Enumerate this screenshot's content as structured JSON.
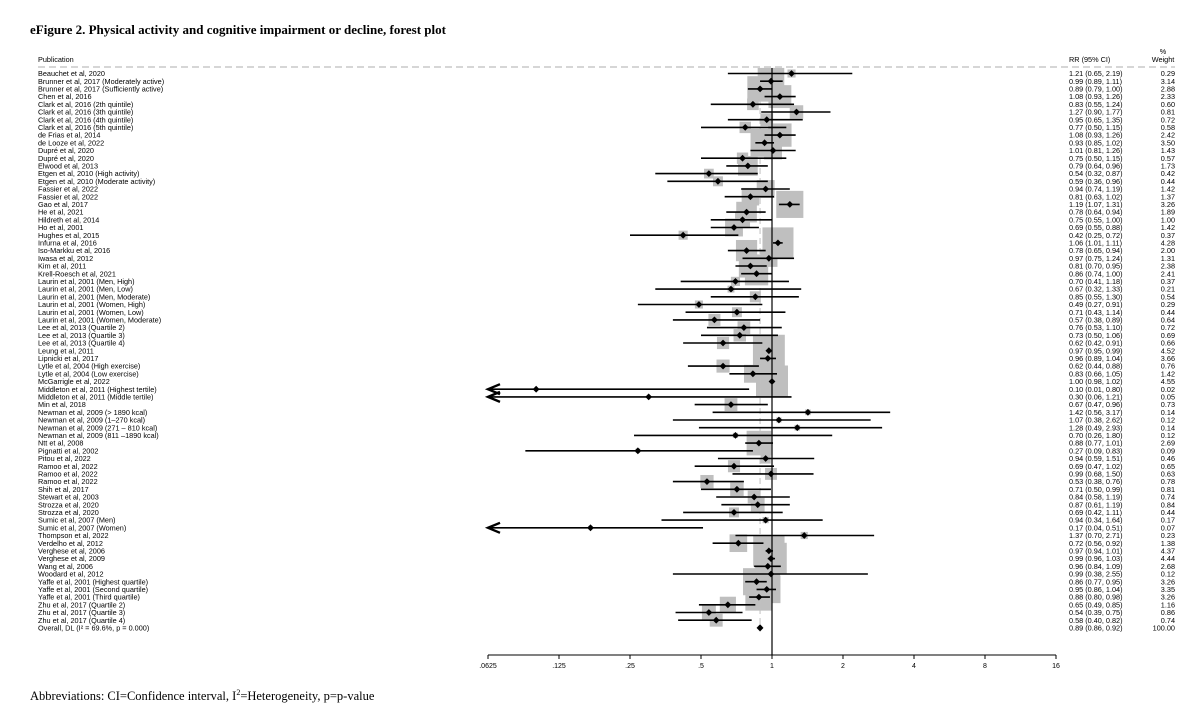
{
  "figure": {
    "title": "eFigure 2. Physical activity and cognitive impairment or decline, forest plot",
    "footnote_pre": "Abbreviations: CI=Confidence interval, I",
    "footnote_sup": "2",
    "footnote_post": "=Heterogeneity, p=p-value"
  },
  "chart_data": {
    "type": "forest",
    "xscale": "log2",
    "xlim": [
      0.0625,
      16
    ],
    "x_ticks": [
      {
        "v": 0.0625,
        "label": ".0625"
      },
      {
        "v": 0.125,
        "label": ".125"
      },
      {
        "v": 0.25,
        "label": ".25"
      },
      {
        "v": 0.5,
        "label": ".5"
      },
      {
        "v": 1,
        "label": "1"
      },
      {
        "v": 2,
        "label": "2"
      },
      {
        "v": 4,
        "label": "4"
      },
      {
        "v": 8,
        "label": "8"
      },
      {
        "v": 16,
        "label": "16"
      }
    ],
    "column_headers": {
      "study": "Publication",
      "effect": "RR (95% CI)",
      "weight_top": "%",
      "weight_bottom": "Weight"
    },
    "reference_line": 1,
    "overall_line": 0.89,
    "studies": [
      {
        "label": "Beauchet et al, 2020",
        "rr": 1.21,
        "lo": 0.65,
        "hi": 2.19,
        "ci": "1.21 (0.65, 2.19)",
        "weight": "0.29"
      },
      {
        "label": "Brunner et al, 2017 (Moderately active)",
        "rr": 0.99,
        "lo": 0.89,
        "hi": 1.11,
        "ci": "0.99 (0.89, 1.11)",
        "weight": "3.14"
      },
      {
        "label": "Brunner et al, 2017 (Sufficiently active)",
        "rr": 0.89,
        "lo": 0.79,
        "hi": 1.0,
        "ci": "0.89 (0.79, 1.00)",
        "weight": "2.88"
      },
      {
        "label": "Chen et al, 2016",
        "rr": 1.08,
        "lo": 0.93,
        "hi": 1.26,
        "ci": "1.08 (0.93, 1.26)",
        "weight": "2.33"
      },
      {
        "label": "Clark et al, 2016 (2th quintile)",
        "rr": 0.83,
        "lo": 0.55,
        "hi": 1.24,
        "ci": "0.83 (0.55, 1.24)",
        "weight": "0.60"
      },
      {
        "label": "Clark et al, 2016 (3th quintile)",
        "rr": 1.27,
        "lo": 0.9,
        "hi": 1.77,
        "ci": "1.27 (0.90, 1.77)",
        "weight": "0.81"
      },
      {
        "label": "Clark et al, 2016 (4th quintile)",
        "rr": 0.95,
        "lo": 0.65,
        "hi": 1.35,
        "ci": "0.95 (0.65, 1.35)",
        "weight": "0.72"
      },
      {
        "label": "Clark et al, 2016 (5th quintile)",
        "rr": 0.77,
        "lo": 0.5,
        "hi": 1.15,
        "ci": "0.77 (0.50, 1.15)",
        "weight": "0.58"
      },
      {
        "label": "de Frias et al, 2014",
        "rr": 1.08,
        "lo": 0.93,
        "hi": 1.26,
        "ci": "1.08 (0.93, 1.26)",
        "weight": "2.42"
      },
      {
        "label": "de Looze et al, 2022",
        "rr": 0.93,
        "lo": 0.85,
        "hi": 1.02,
        "ci": "0.93 (0.85, 1.02)",
        "weight": "3.50"
      },
      {
        "label": "Dupré et al, 2020",
        "rr": 1.01,
        "lo": 0.81,
        "hi": 1.26,
        "ci": "1.01 (0.81, 1.26)",
        "weight": "1.43"
      },
      {
        "label": "Dupré et al, 2020",
        "rr": 0.75,
        "lo": 0.5,
        "hi": 1.15,
        "ci": "0.75 (0.50, 1.15)",
        "weight": "0.57"
      },
      {
        "label": "Elwood et al, 2013",
        "rr": 0.79,
        "lo": 0.64,
        "hi": 0.96,
        "ci": "0.79 (0.64, 0.96)",
        "weight": "1.73"
      },
      {
        "label": "Etgen et al, 2010 (High activity)",
        "rr": 0.54,
        "lo": 0.32,
        "hi": 0.87,
        "ci": "0.54 (0.32, 0.87)",
        "weight": "0.42"
      },
      {
        "label": "Etgen et al, 2010 (Moderate activity)",
        "rr": 0.59,
        "lo": 0.36,
        "hi": 0.96,
        "ci": "0.59 (0.36, 0.96)",
        "weight": "0.44"
      },
      {
        "label": "Fassier et al, 2022",
        "rr": 0.94,
        "lo": 0.74,
        "hi": 1.19,
        "ci": "0.94 (0.74, 1.19)",
        "weight": "1.42"
      },
      {
        "label": "Fassier et al, 2022",
        "rr": 0.81,
        "lo": 0.63,
        "hi": 1.02,
        "ci": "0.81 (0.63, 1.02)",
        "weight": "1.37"
      },
      {
        "label": "Gao et al, 2017",
        "rr": 1.19,
        "lo": 1.07,
        "hi": 1.31,
        "ci": "1.19 (1.07, 1.31)",
        "weight": "3.26"
      },
      {
        "label": "He et al, 2021",
        "rr": 0.78,
        "lo": 0.64,
        "hi": 0.94,
        "ci": "0.78 (0.64, 0.94)",
        "weight": "1.89"
      },
      {
        "label": "Hildreth et al, 2014",
        "rr": 0.75,
        "lo": 0.55,
        "hi": 1.0,
        "ci": "0.75 (0.55, 1.00)",
        "weight": "1.00"
      },
      {
        "label": "Ho et al, 2001",
        "rr": 0.69,
        "lo": 0.55,
        "hi": 0.88,
        "ci": "0.69 (0.55, 0.88)",
        "weight": "1.42"
      },
      {
        "label": "Hughes et al, 2015",
        "rr": 0.42,
        "lo": 0.25,
        "hi": 0.72,
        "ci": "0.42 (0.25, 0.72)",
        "weight": "0.37"
      },
      {
        "label": "Infurna et al, 2016",
        "rr": 1.06,
        "lo": 1.01,
        "hi": 1.11,
        "ci": "1.06 (1.01, 1.11)",
        "weight": "4.28"
      },
      {
        "label": "Iso-Markku et al, 2016",
        "rr": 0.78,
        "lo": 0.65,
        "hi": 0.94,
        "ci": "0.78 (0.65, 0.94)",
        "weight": "2.00"
      },
      {
        "label": "Iwasa et al, 2012",
        "rr": 0.97,
        "lo": 0.75,
        "hi": 1.24,
        "ci": "0.97 (0.75, 1.24)",
        "weight": "1.31"
      },
      {
        "label": "Kim et al, 2011",
        "rr": 0.81,
        "lo": 0.7,
        "hi": 0.95,
        "ci": "0.81 (0.70, 0.95)",
        "weight": "2.38"
      },
      {
        "label": "Krell-Roesch et al, 2021",
        "rr": 0.86,
        "lo": 0.74,
        "hi": 1.0,
        "ci": "0.86 (0.74, 1.00)",
        "weight": "2.41"
      },
      {
        "label": "Laurin et al, 2001 (Men, High)",
        "rr": 0.7,
        "lo": 0.41,
        "hi": 1.18,
        "ci": "0.70 (0.41, 1.18)",
        "weight": "0.37"
      },
      {
        "label": "Laurin et al, 2001 (Men, Low)",
        "rr": 0.67,
        "lo": 0.32,
        "hi": 1.33,
        "ci": "0.67 (0.32, 1.33)",
        "weight": "0.21"
      },
      {
        "label": "Laurin et al, 2001 (Men, Moderate)",
        "rr": 0.85,
        "lo": 0.55,
        "hi": 1.3,
        "ci": "0.85 (0.55, 1.30)",
        "weight": "0.54"
      },
      {
        "label": "Laurin et al, 2001 (Women, High)",
        "rr": 0.49,
        "lo": 0.27,
        "hi": 0.91,
        "ci": "0.49 (0.27, 0.91)",
        "weight": "0.29"
      },
      {
        "label": "Laurin et al, 2001 (Women, Low)",
        "rr": 0.71,
        "lo": 0.43,
        "hi": 1.14,
        "ci": "0.71 (0.43, 1.14)",
        "weight": "0.44"
      },
      {
        "label": "Laurin et al, 2001 (Women, Moderate)",
        "rr": 0.57,
        "lo": 0.38,
        "hi": 0.89,
        "ci": "0.57 (0.38, 0.89)",
        "weight": "0.64"
      },
      {
        "label": "Lee et al, 2013 (Quartile 2)",
        "rr": 0.76,
        "lo": 0.53,
        "hi": 1.1,
        "ci": "0.76 (0.53, 1.10)",
        "weight": "0.72"
      },
      {
        "label": "Lee et al, 2013 (Quartile 3)",
        "rr": 0.73,
        "lo": 0.5,
        "hi": 1.06,
        "ci": "0.73 (0.50, 1.06)",
        "weight": "0.69"
      },
      {
        "label": "Lee et al, 2013 (Quartile 4)",
        "rr": 0.62,
        "lo": 0.42,
        "hi": 0.91,
        "ci": "0.62 (0.42, 0.91)",
        "weight": "0.66"
      },
      {
        "label": "Leung et al, 2011",
        "rr": 0.97,
        "lo": 0.95,
        "hi": 0.99,
        "ci": "0.97 (0.95, 0.99)",
        "weight": "4.52"
      },
      {
        "label": "Lipnicki et al, 2017",
        "rr": 0.96,
        "lo": 0.89,
        "hi": 1.04,
        "ci": "0.96 (0.89, 1.04)",
        "weight": "3.66"
      },
      {
        "label": "Lytle et al, 2004 (High exercise)",
        "rr": 0.62,
        "lo": 0.44,
        "hi": 0.88,
        "ci": "0.62 (0.44, 0.88)",
        "weight": "0.76"
      },
      {
        "label": "Lytle et al, 2004 (Low exercise)",
        "rr": 0.83,
        "lo": 0.66,
        "hi": 1.05,
        "ci": "0.83 (0.66, 1.05)",
        "weight": "1.42"
      },
      {
        "label": "McGarrigle et al, 2022",
        "rr": 1.0,
        "lo": 0.98,
        "hi": 1.02,
        "ci": "1.00 (0.98, 1.02)",
        "weight": "4.55"
      },
      {
        "label": "Middleton et al, 2011 (Highest tertile)",
        "rr": 0.1,
        "lo": 0.01,
        "hi": 0.8,
        "ci": "0.10 (0.01, 0.80)",
        "weight": "0.02"
      },
      {
        "label": "Middleton et al, 2011 (Middle tertile)",
        "rr": 0.3,
        "lo": 0.06,
        "hi": 1.21,
        "ci": "0.30 (0.06, 1.21)",
        "weight": "0.05"
      },
      {
        "label": "Min et al, 2018",
        "rr": 0.67,
        "lo": 0.47,
        "hi": 0.96,
        "ci": "0.67 (0.47, 0.96)",
        "weight": "0.73"
      },
      {
        "label": "Newman et al, 2009 (> 1890 kcal)",
        "rr": 1.42,
        "lo": 0.56,
        "hi": 3.17,
        "ci": "1.42 (0.56, 3.17)",
        "weight": "0.14"
      },
      {
        "label": "Newman et al, 2009 (1–270 kcal)",
        "rr": 1.07,
        "lo": 0.38,
        "hi": 2.62,
        "ci": "1.07 (0.38, 2.62)",
        "weight": "0.12"
      },
      {
        "label": "Newman et al, 2009 (271 – 810 kcal)",
        "rr": 1.28,
        "lo": 0.49,
        "hi": 2.93,
        "ci": "1.28 (0.49, 2.93)",
        "weight": "0.14"
      },
      {
        "label": "Newman et al, 2009 (811 –1890 kcal)",
        "rr": 0.7,
        "lo": 0.26,
        "hi": 1.8,
        "ci": "0.70 (0.26, 1.80)",
        "weight": "0.12"
      },
      {
        "label": "Ntt et al, 2008",
        "rr": 0.88,
        "lo": 0.77,
        "hi": 1.01,
        "ci": "0.88 (0.77, 1.01)",
        "weight": "2.69"
      },
      {
        "label": "Pignatti et al, 2002",
        "rr": 0.27,
        "lo": 0.09,
        "hi": 0.83,
        "ci": "0.27 (0.09, 0.83)",
        "weight": "0.09"
      },
      {
        "label": "Pitou et al, 2022",
        "rr": 0.94,
        "lo": 0.59,
        "hi": 1.51,
        "ci": "0.94 (0.59, 1.51)",
        "weight": "0.46"
      },
      {
        "label": "Ramoo et al, 2022",
        "rr": 0.69,
        "lo": 0.47,
        "hi": 1.02,
        "ci": "0.69 (0.47, 1.02)",
        "weight": "0.65"
      },
      {
        "label": "Ramoo et al, 2022",
        "rr": 0.99,
        "lo": 0.68,
        "hi": 1.5,
        "ci": "0.99 (0.68, 1.50)",
        "weight": "0.63"
      },
      {
        "label": "Ramoo et al, 2022",
        "rr": 0.53,
        "lo": 0.38,
        "hi": 0.76,
        "ci": "0.53 (0.38, 0.76)",
        "weight": "0.78"
      },
      {
        "label": "Shih et al, 2017",
        "rr": 0.71,
        "lo": 0.5,
        "hi": 0.99,
        "ci": "0.71 (0.50, 0.99)",
        "weight": "0.81"
      },
      {
        "label": "Stewart et al, 2003",
        "rr": 0.84,
        "lo": 0.58,
        "hi": 1.19,
        "ci": "0.84 (0.58, 1.19)",
        "weight": "0.74"
      },
      {
        "label": "Strozza et al, 2020",
        "rr": 0.87,
        "lo": 0.61,
        "hi": 1.19,
        "ci": "0.87 (0.61, 1.19)",
        "weight": "0.84"
      },
      {
        "label": "Strozza et al, 2020",
        "rr": 0.69,
        "lo": 0.42,
        "hi": 1.11,
        "ci": "0.69 (0.42, 1.11)",
        "weight": "0.44"
      },
      {
        "label": "Sumic et al, 2007 (Men)",
        "rr": 0.94,
        "lo": 0.34,
        "hi": 1.64,
        "ci": "0.94 (0.34, 1.64)",
        "weight": "0.17"
      },
      {
        "label": "Sumic et al, 2007 (Women)",
        "rr": 0.17,
        "lo": 0.04,
        "hi": 0.51,
        "ci": "0.17 (0.04, 0.51)",
        "weight": "0.07"
      },
      {
        "label": "Thompson et al, 2022",
        "rr": 1.37,
        "lo": 0.7,
        "hi": 2.71,
        "ci": "1.37 (0.70, 2.71)",
        "weight": "0.23"
      },
      {
        "label": "Verdelho et al, 2012",
        "rr": 0.72,
        "lo": 0.56,
        "hi": 0.92,
        "ci": "0.72 (0.56, 0.92)",
        "weight": "1.38"
      },
      {
        "label": "Verghese et al, 2006",
        "rr": 0.97,
        "lo": 0.94,
        "hi": 1.01,
        "ci": "0.97 (0.94, 1.01)",
        "weight": "4.37"
      },
      {
        "label": "Verghese et al, 2009",
        "rr": 0.99,
        "lo": 0.96,
        "hi": 1.03,
        "ci": "0.99 (0.96, 1.03)",
        "weight": "4.44"
      },
      {
        "label": "Wang et al, 2006",
        "rr": 0.96,
        "lo": 0.84,
        "hi": 1.09,
        "ci": "0.96 (0.84, 1.09)",
        "weight": "2.68"
      },
      {
        "label": "Woodard et al, 2012",
        "rr": 0.99,
        "lo": 0.38,
        "hi": 2.55,
        "ci": "0.99 (0.38, 2.55)",
        "weight": "0.12"
      },
      {
        "label": "Yaffe et al, 2001 (Highest quartile)",
        "rr": 0.86,
        "lo": 0.77,
        "hi": 0.95,
        "ci": "0.86 (0.77, 0.95)",
        "weight": "3.26"
      },
      {
        "label": "Yaffe et al, 2001 (Second quartile)",
        "rr": 0.95,
        "lo": 0.86,
        "hi": 1.04,
        "ci": "0.95 (0.86, 1.04)",
        "weight": "3.35"
      },
      {
        "label": "Yaffe et al, 2001 (Third quartile)",
        "rr": 0.88,
        "lo": 0.8,
        "hi": 0.98,
        "ci": "0.88 (0.80, 0.98)",
        "weight": "3.26"
      },
      {
        "label": "Zhu et al, 2017 (Quartile 2)",
        "rr": 0.65,
        "lo": 0.49,
        "hi": 0.85,
        "ci": "0.65 (0.49, 0.85)",
        "weight": "1.16"
      },
      {
        "label": "Zhu et al, 2017 (Quartile 3)",
        "rr": 0.54,
        "lo": 0.39,
        "hi": 0.75,
        "ci": "0.54 (0.39, 0.75)",
        "weight": "0.86"
      },
      {
        "label": "Zhu et al, 2017 (Quartile 4)",
        "rr": 0.58,
        "lo": 0.4,
        "hi": 0.82,
        "ci": "0.58 (0.40, 0.82)",
        "weight": "0.74"
      }
    ],
    "overall": {
      "label": "Overall, DL (I² = 69.6%, p = 0.000)",
      "rr": 0.89,
      "lo": 0.86,
      "hi": 0.92,
      "ci": "0.89 (0.86, 0.92)",
      "weight": "100.00"
    },
    "colors": {
      "box": "#bfbfbf",
      "marker": "#000000",
      "null_line": "#000000",
      "overall_line": "#c0c0c0"
    }
  }
}
